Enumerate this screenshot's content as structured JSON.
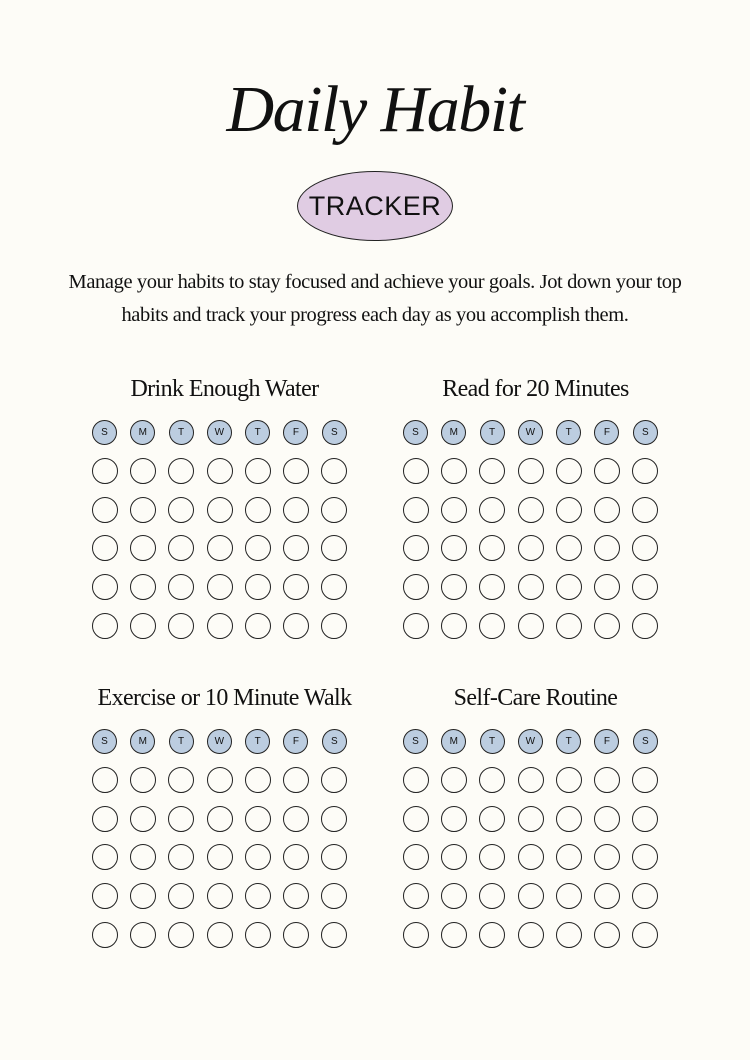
{
  "title": "Daily Habit",
  "badge": "TRACKER",
  "description": "Manage your habits to stay focused and achieve your goals. Jot down your top habits and track your progress each day as you accomplish them.",
  "days": [
    "S",
    "M",
    "T",
    "W",
    "T",
    "F",
    "S"
  ],
  "habits": [
    {
      "title": "Drink Enough Water",
      "rows": 5
    },
    {
      "title": "Read for 20 Minutes",
      "rows": 5
    },
    {
      "title": "Exercise or 10 Minute Walk",
      "rows": 5
    },
    {
      "title": "Self-Care Routine",
      "rows": 5
    }
  ],
  "colors": {
    "background": "#fdfcf7",
    "badge_fill": "#e0cce3",
    "day_fill": "#bccde0",
    "outline": "#222222"
  }
}
